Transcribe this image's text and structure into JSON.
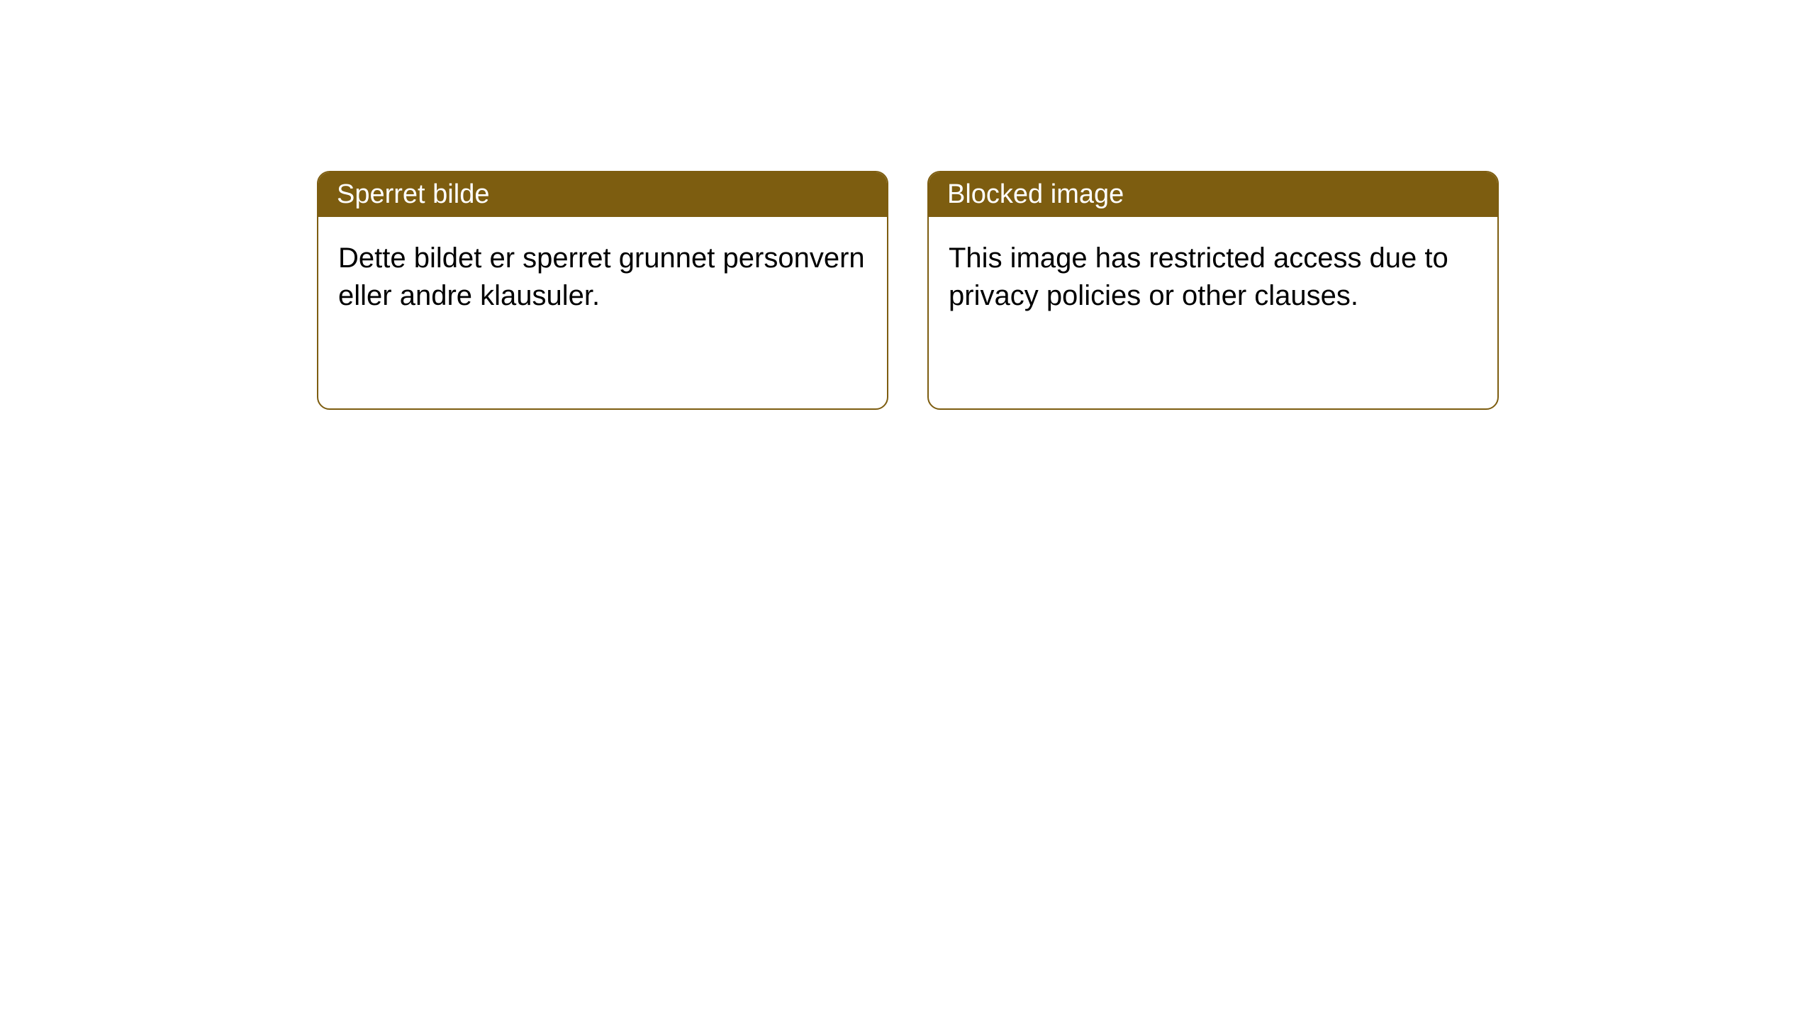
{
  "notices": [
    {
      "title": "Sperret bilde",
      "body": "Dette bildet er sperret grunnet personvern eller andre klausuler."
    },
    {
      "title": "Blocked image",
      "body": "This image has restricted access due to privacy policies or other clauses."
    }
  ],
  "styling": {
    "header_bg_color": "#7d5d10",
    "header_text_color": "#ffffff",
    "border_color": "#7d5d10",
    "body_text_color": "#000000",
    "background_color": "#ffffff",
    "border_radius": 18,
    "header_fontsize": 38,
    "body_fontsize": 40
  }
}
